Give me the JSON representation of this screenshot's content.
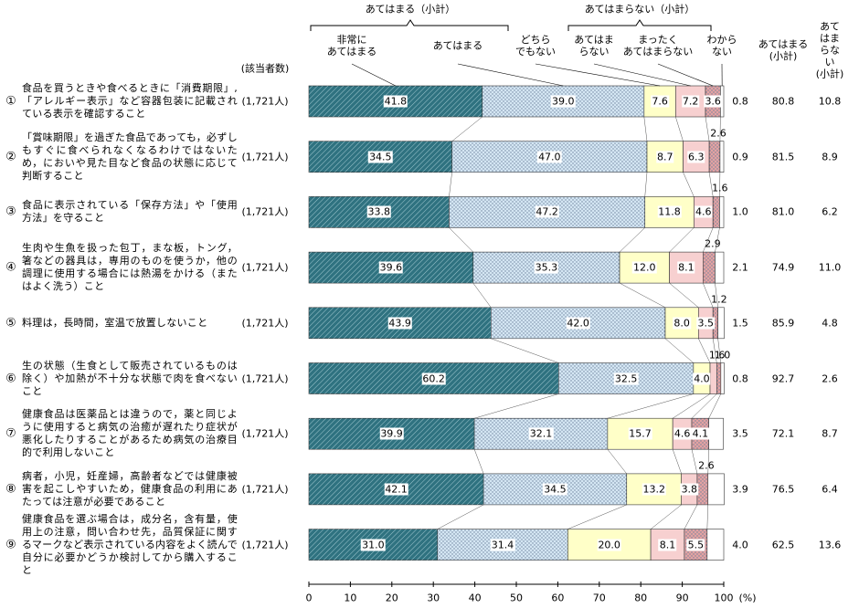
{
  "chart_data": {
    "type": "bar",
    "orientation": "horizontal",
    "stacked": true,
    "group_labels": [
      "あてはまる（小計）",
      "あてはまらない（小計）"
    ],
    "sample_size_label": "(該当者数)",
    "numbers": [
      "①",
      "②",
      "③",
      "④",
      "⑤",
      "⑥",
      "⑦",
      "⑧",
      "⑨"
    ],
    "categories": [
      "食品を買うときや食べるときに「消費期限」,「アレルギー表示」など容器包装に記載されている表示を確認すること",
      "「賞味期限」を過ぎた食品であっても，必ずしもすぐに食べられなくなるわけではないため，においや見た目など食品の状態に応じて判断すること",
      "食品に表示されている「保存方法」や「使用方法」を守ること",
      "生肉や生魚を扱った包丁，まな板，トング，箸などの器具は，専用のものを使うか，他の調理に使用する場合には熱湯をかける（またはよく洗う）こと",
      "料理は，長時間，室温で放置しないこと",
      "生の状態（生食として販売されているものは除く）や加熱が不十分な状態で肉を食べないこと",
      "健康食品は医薬品とは違うので，薬と同じように使用すると病気の治癒が遅れたり症状が悪化したりすることがあるため病気の治療目的で利用しないこと",
      "病者，小児，妊産婦，高齢者などでは健康被害を起こしやすいため，健康食品の利用にあたっては注意が必要であること",
      "健康食品を選ぶ場合は，成分名，含有量，使用上の注意，問い合わせ先，品質保証に関するマークなど表示されている内容をよく読んで自分に必要かどうか検討してから購入すること"
    ],
    "sample_sizes": [
      "(1,721人)",
      "(1,721人)",
      "(1,721人)",
      "(1,721人)",
      "(1,721人)",
      "(1,721人)",
      "(1,721人)",
      "(1,721人)",
      "(1,721人)"
    ],
    "series": [
      {
        "name": "非常に\nあてはまる",
        "color": "#2f7280",
        "pattern": "hatch",
        "values": [
          41.8,
          34.5,
          33.8,
          39.6,
          43.9,
          60.2,
          39.9,
          42.1,
          31.0
        ],
        "value_labels": [
          "41.8",
          "34.5",
          "33.8",
          "39.6",
          "43.9",
          "60.2",
          "39.9",
          "42.1",
          "31.0"
        ]
      },
      {
        "name": "あてはまる",
        "color": "#d4e6f3",
        "pattern": "dots",
        "values": [
          39.0,
          47.0,
          47.2,
          35.3,
          42.0,
          32.5,
          32.1,
          34.5,
          31.4
        ],
        "value_labels": [
          "39.0",
          "47.0",
          "47.2",
          "35.3",
          "42.0",
          "32.5",
          "32.1",
          "34.5",
          "31.4"
        ]
      },
      {
        "name": "どちら\nでもない",
        "color": "#ffffc8",
        "pattern": null,
        "values": [
          7.6,
          8.7,
          11.8,
          12.0,
          8.0,
          4.0,
          15.7,
          13.2,
          20.0
        ],
        "value_labels": [
          "7.6",
          "8.7",
          "11.8",
          "12.0",
          "8.0",
          "4.0",
          "15.7",
          "13.2",
          "20.0"
        ]
      },
      {
        "name": "あてはま\nらない",
        "color": "#f7d0d0",
        "pattern": null,
        "values": [
          7.2,
          6.3,
          4.6,
          8.1,
          3.5,
          1.6,
          4.6,
          3.8,
          8.1
        ],
        "value_labels": [
          "7.2",
          "6.3",
          "4.6",
          "8.1",
          "3.5",
          "1.6",
          "4.6",
          "3.8",
          "8.1"
        ]
      },
      {
        "name": "まったく\nあてはまらない",
        "color": "#e3a2a2",
        "pattern": "dots",
        "values": [
          3.6,
          2.6,
          1.6,
          2.9,
          1.2,
          1.0,
          4.1,
          2.6,
          5.5
        ],
        "value_labels": [
          "3.6",
          "2.6",
          "1.6",
          "2.9",
          "1.2",
          "1.0",
          "4.1",
          "2.6",
          "5.5"
        ]
      },
      {
        "name": "わから\nない",
        "color": "#ffffff",
        "pattern": null,
        "values": [
          0.8,
          0.9,
          1.0,
          2.1,
          1.5,
          0.8,
          3.5,
          3.9,
          4.0
        ],
        "value_labels": [
          "0.8",
          "0.9",
          "1.0",
          "2.1",
          "1.5",
          "0.8",
          "3.5",
          "3.9",
          "4.0"
        ]
      }
    ],
    "subtotals": [
      {
        "name": "あてはまる\n(小計)",
        "values": [
          80.8,
          81.5,
          81.0,
          74.9,
          85.9,
          92.7,
          72.1,
          76.5,
          62.5
        ],
        "value_labels": [
          "80.8",
          "81.5",
          "81.0",
          "74.9",
          "85.9",
          "92.7",
          "72.1",
          "76.5",
          "62.5"
        ]
      },
      {
        "name": "あてはまらない\n(小計)",
        "values": [
          10.8,
          8.9,
          6.2,
          11.0,
          4.8,
          2.6,
          8.7,
          6.4,
          13.6
        ],
        "value_labels": [
          "10.8",
          "8.9",
          "6.2",
          "11.0",
          "4.8",
          "2.6",
          "8.7",
          "6.4",
          "13.6"
        ]
      }
    ],
    "xlim": [
      0,
      100
    ],
    "xticks": [
      0,
      10,
      20,
      30,
      40,
      50,
      60,
      70,
      80,
      90,
      100
    ],
    "x_unit": "(%)"
  }
}
